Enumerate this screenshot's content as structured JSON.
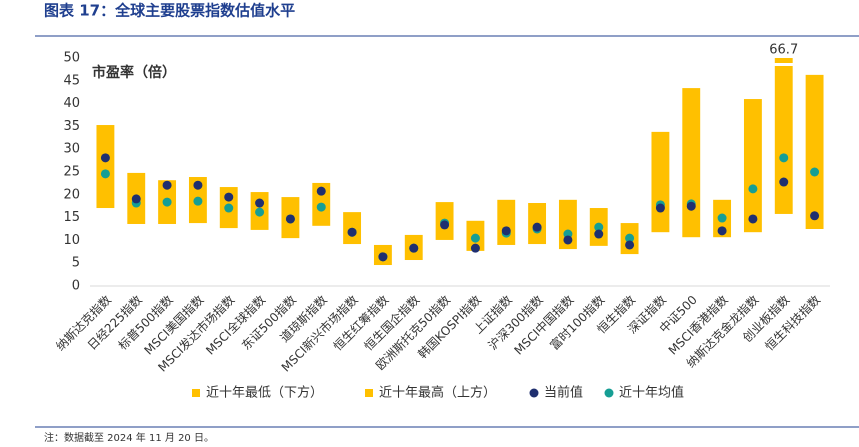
{
  "chart_data": {
    "type": "floating_bar",
    "title": "图表 17：全球主要股票指数估值水平",
    "y_label": "市盈率（倍）",
    "note": "注：数据截至 2024 年 11 月 20 日。",
    "categories": [
      "纳斯达克指数",
      "日经225指数",
      "标普500指数",
      "MSCI美国指数",
      "MSCI发达市场指数",
      "MSCI全球指数",
      "东证500指数",
      "道琼斯指数",
      "MSCI新兴市场指数",
      "恒生红筹指数",
      "恒生国企指数",
      "欧洲斯托克50指数",
      "韩国KOSPI指数",
      "上证指数",
      "沪深300指数",
      "MSCI中国指数",
      "富时100指数",
      "恒生指数",
      "深证指数",
      "中证500",
      "MSCI香港指数",
      "纳斯达克金龙指数",
      "创业板指数",
      "恒生科技指数"
    ],
    "series": [
      {
        "name": "近十年最低（下方）",
        "color": "#ffc000",
        "values": [
          17.1,
          13.6,
          13.6,
          13.8,
          12.7,
          12.3,
          10.5,
          13.2,
          9.2,
          4.6,
          5.7,
          10.1,
          7.7,
          9.0,
          9.2,
          8.1,
          8.8,
          7.0,
          11.8,
          10.7,
          10.7,
          11.8,
          15.8,
          12.5
        ]
      },
      {
        "name": "近十年最高（上方）",
        "color": "#ffc000",
        "values": [
          35.3,
          24.8,
          23.2,
          23.9,
          21.7,
          20.6,
          19.5,
          22.6,
          16.2,
          9.0,
          11.2,
          18.4,
          14.3,
          18.9,
          18.2,
          18.9,
          17.1,
          13.8,
          33.8,
          43.4,
          18.9,
          41.0,
          66.7,
          46.3
        ],
        "value_labels": [
          null,
          null,
          null,
          null,
          null,
          null,
          null,
          null,
          null,
          null,
          null,
          null,
          null,
          null,
          null,
          null,
          null,
          null,
          null,
          null,
          null,
          null,
          "66.7",
          null
        ]
      },
      {
        "name": "当前值",
        "color": "#1f2f6f",
        "values": [
          28.1,
          19.1,
          22.1,
          22.1,
          19.5,
          18.2,
          14.7,
          20.8,
          11.8,
          6.4,
          8.3,
          13.4,
          8.3,
          12.1,
          12.9,
          10.1,
          11.4,
          9.0,
          17.1,
          17.5,
          12.1,
          14.7,
          22.8,
          15.4
        ]
      },
      {
        "name": "近十年均值",
        "color": "#169e94",
        "values": [
          24.6,
          18.2,
          18.4,
          18.6,
          17.1,
          16.2,
          14.7,
          17.3,
          11.8,
          6.4,
          8.3,
          13.8,
          10.5,
          11.6,
          12.5,
          11.4,
          12.9,
          10.5,
          17.8,
          18.0,
          14.9,
          21.3,
          28.1,
          25.0
        ]
      }
    ],
    "ylim": [
      0,
      50
    ],
    "yticks": [
      0,
      5,
      10,
      15,
      20,
      25,
      30,
      35,
      40,
      45,
      50
    ]
  }
}
